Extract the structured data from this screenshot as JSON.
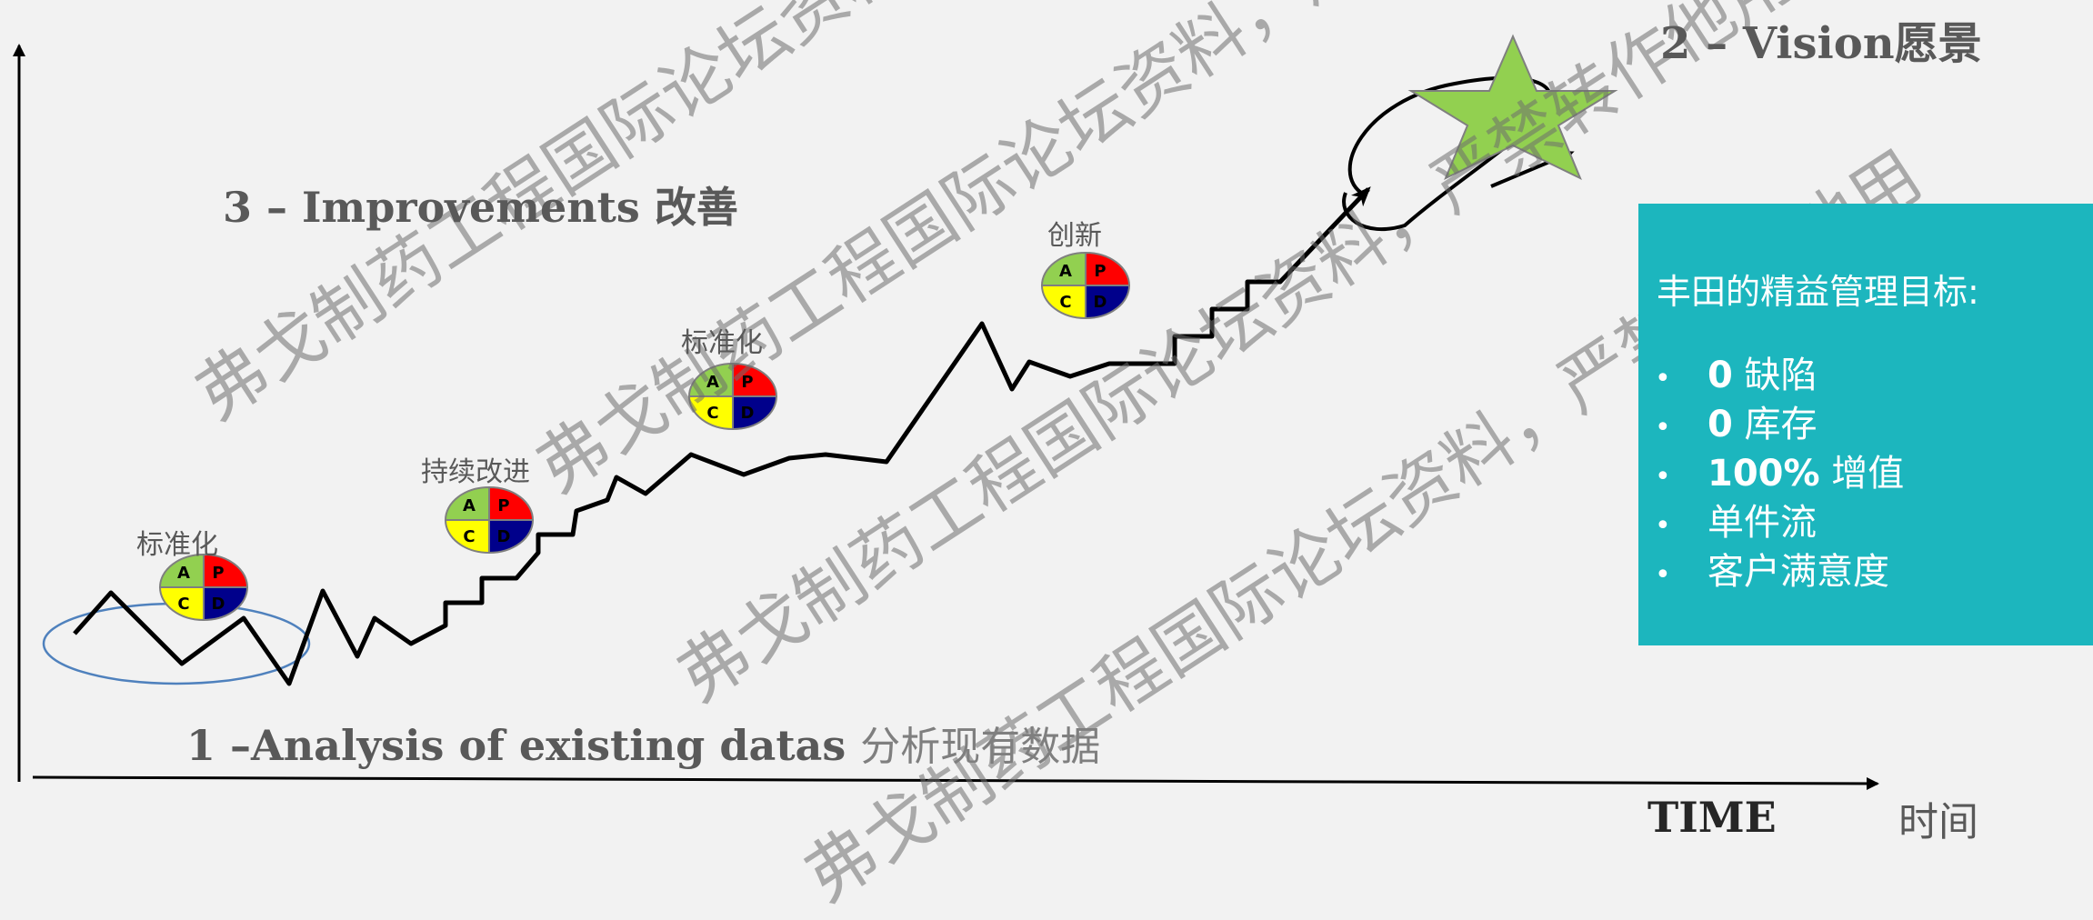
{
  "vision_label": "2 – Vision愿景",
  "improvements_label": "3 – Improvements 改善",
  "analysis_label": "1 –Analysis of existing datas",
  "analysis_label_cn": "分析现有数据",
  "time_label": "TIME",
  "time_label_cn": "时间",
  "steps": [
    "标准化",
    "持续改进",
    "标准化",
    "创新"
  ],
  "pdca_letters": {
    "a": "A",
    "p": "P",
    "c": "C",
    "d": "D"
  },
  "pdca_colors": {
    "a": "#92d050",
    "p": "#ff0000",
    "c": "#ffff00",
    "d": "#00008b"
  },
  "star_color": "#92d050",
  "goal_box": {
    "title": "丰田的精益管理目标:",
    "items": [
      {
        "bold": "0",
        "text": " 缺陷"
      },
      {
        "bold": "0",
        "text": " 库存"
      },
      {
        "bold": "100%",
        "text": " 增值"
      },
      {
        "bold": "",
        "text": "单件流"
      },
      {
        "bold": "",
        "text": "客户满意度"
      }
    ],
    "bullet": "•",
    "color": "#1cb6be"
  },
  "watermarks": [
    "弗戈制药工程国际论坛资料，严禁转作他用",
    "弗戈制药工程国际论坛资料，严禁转作他用",
    "弗戈制药工程国际论坛资料，严禁转作他用",
    "弗戈制药工程国际论坛资料，严禁转作他用"
  ]
}
